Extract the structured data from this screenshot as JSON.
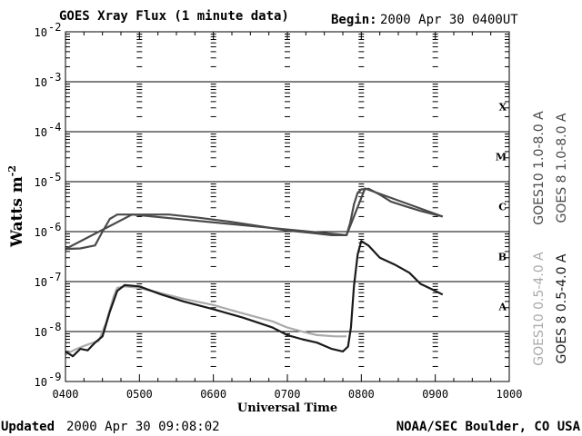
{
  "chart_data": {
    "type": "line",
    "title": "GOES Xray Flux (1 minute data)",
    "begin_label": "Begin:",
    "begin_value": "2000 Apr 30 0400UT",
    "xlabel": "Universal Time",
    "ylabel": "Watts m",
    "ylabel_exp": "-2",
    "x_ticks": [
      "0400",
      "0500",
      "0600",
      "0700",
      "0800",
      "0900",
      "1000"
    ],
    "x_range": [
      4,
      10
    ],
    "y_log": true,
    "y_range": [
      1e-09,
      0.01
    ],
    "y_tick_base": "10",
    "y_ticks": [
      -9,
      -8,
      -7,
      -6,
      -5,
      -4,
      -3,
      -2
    ],
    "flare_classes": [
      {
        "label": "A",
        "exp": -8
      },
      {
        "label": "B",
        "exp": -7
      },
      {
        "label": "C",
        "exp": -6
      },
      {
        "label": "M",
        "exp": -5
      },
      {
        "label": "X",
        "exp": -4
      }
    ],
    "grid": "horizontal lines at each decade",
    "legend_placement": "right, vertical",
    "series": [
      {
        "name": "GOES10 1.0-8.0 A",
        "color": "#4a4a4a",
        "points": [
          [
            4.0,
            4.5e-07
          ],
          [
            4.2,
            4.6e-07
          ],
          [
            4.4,
            5.3e-07
          ],
          [
            4.5,
            1e-06
          ],
          [
            4.6,
            1.8e-06
          ],
          [
            4.7,
            2.2e-06
          ],
          [
            4.9,
            2.2e-06
          ],
          [
            5.1,
            2.2e-06
          ],
          [
            5.4,
            2.2e-06
          ],
          [
            5.8,
            1.9e-06
          ],
          [
            6.2,
            1.6e-06
          ],
          [
            6.6,
            1.3e-06
          ],
          [
            7.0,
            1.05e-06
          ],
          [
            7.3,
            9.5e-07
          ],
          [
            7.6,
            8.5e-07
          ],
          [
            7.8,
            8.5e-07
          ],
          [
            7.85,
            1.5e-06
          ],
          [
            7.9,
            3.5e-06
          ],
          [
            7.95,
            6e-06
          ],
          [
            8.0,
            7e-06
          ],
          [
            8.1,
            7.2e-06
          ],
          [
            8.25,
            5.5e-06
          ],
          [
            8.4,
            4e-06
          ],
          [
            8.6,
            3.2e-06
          ],
          [
            8.8,
            2.6e-06
          ],
          [
            9.1,
            2e-06
          ]
        ]
      },
      {
        "name": "GOES 8 1.0-8.0 A",
        "color": "#4a4a4a",
        "points": [
          [
            4.0,
            4.5e-07
          ],
          [
            4.9,
            2.2e-06
          ],
          [
            7.8,
            8.5e-07
          ],
          [
            8.05,
            7.3e-06
          ],
          [
            9.1,
            2e-06
          ]
        ]
      },
      {
        "name": "GOES10 0.5-4.0 A",
        "color": "#aaaaaa",
        "points": [
          [
            4.0,
            3.5e-09
          ],
          [
            4.15,
            4.5e-09
          ],
          [
            4.3,
            5.5e-09
          ],
          [
            4.45,
            6.5e-09
          ],
          [
            4.55,
            1.5e-08
          ],
          [
            4.65,
            5e-08
          ],
          [
            4.7,
            7.5e-08
          ],
          [
            4.8,
            8e-08
          ],
          [
            5.0,
            7.5e-08
          ],
          [
            5.3,
            5.8e-08
          ],
          [
            5.6,
            4.5e-08
          ],
          [
            6.0,
            3.4e-08
          ],
          [
            6.4,
            2.3e-08
          ],
          [
            6.8,
            1.6e-08
          ],
          [
            7.0,
            1.2e-08
          ],
          [
            7.2,
            1e-08
          ],
          [
            7.4,
            8.5e-09
          ],
          [
            7.65,
            8e-09
          ],
          [
            7.8,
            8e-09
          ]
        ]
      },
      {
        "name": "GOES 8 0.5-4.0 A",
        "color": "#1a1a1a",
        "points": [
          [
            4.0,
            4e-09
          ],
          [
            4.1,
            3.2e-09
          ],
          [
            4.2,
            4.5e-09
          ],
          [
            4.3,
            4.2e-09
          ],
          [
            4.4,
            6e-09
          ],
          [
            4.5,
            8e-09
          ],
          [
            4.6,
            2.5e-08
          ],
          [
            4.7,
            6.5e-08
          ],
          [
            4.8,
            8.5e-08
          ],
          [
            5.0,
            8e-08
          ],
          [
            5.3,
            5.5e-08
          ],
          [
            5.6,
            4e-08
          ],
          [
            6.0,
            2.8e-08
          ],
          [
            6.4,
            1.9e-08
          ],
          [
            6.8,
            1.2e-08
          ],
          [
            7.0,
            8.5e-09
          ],
          [
            7.2,
            7e-09
          ],
          [
            7.4,
            6e-09
          ],
          [
            7.6,
            4.5e-09
          ],
          [
            7.75,
            4e-09
          ],
          [
            7.82,
            5e-09
          ],
          [
            7.86,
            1.2e-08
          ],
          [
            7.9,
            8e-08
          ],
          [
            7.95,
            3.5e-07
          ],
          [
            8.0,
            6.5e-07
          ],
          [
            8.1,
            5.2e-07
          ],
          [
            8.25,
            3e-07
          ],
          [
            8.45,
            2.2e-07
          ],
          [
            8.65,
            1.5e-07
          ],
          [
            8.8,
            9e-08
          ],
          [
            9.0,
            6.5e-08
          ],
          [
            9.1,
            5.5e-08
          ]
        ]
      }
    ]
  },
  "footer": {
    "updated_label": "Updated",
    "updated_value": "2000 Apr 30 09:08:02",
    "credit": "NOAA/SEC Boulder, CO USA"
  }
}
